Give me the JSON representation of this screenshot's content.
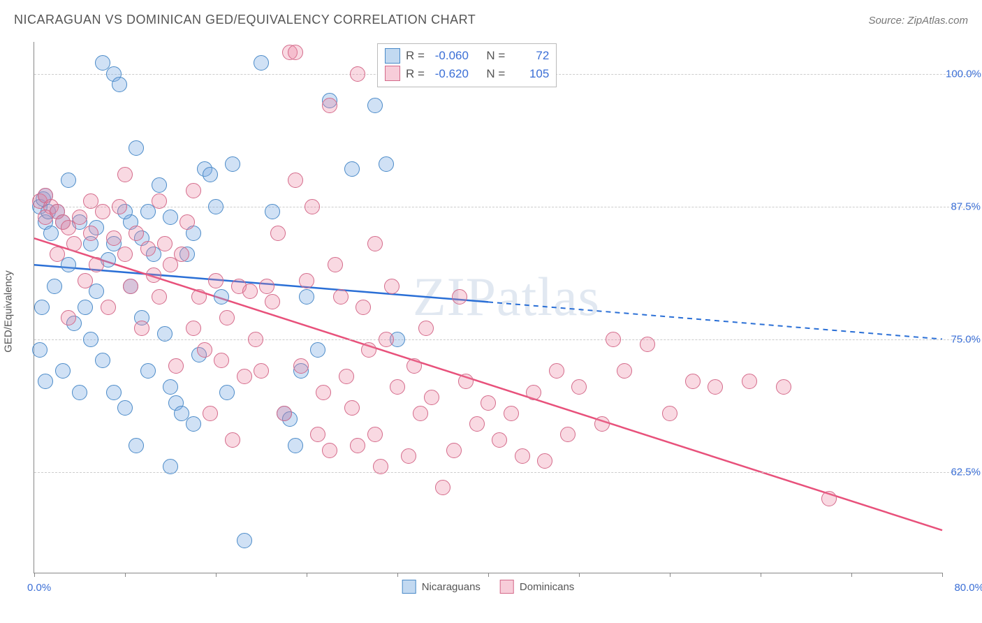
{
  "title": "NICARAGUAN VS DOMINICAN GED/EQUIVALENCY CORRELATION CHART",
  "source": "Source: ZipAtlas.com",
  "watermark": "ZIPatlas",
  "y_axis_label": "GED/Equivalency",
  "x_range": [
    0,
    80
  ],
  "y_range": [
    53,
    103
  ],
  "x_labels": {
    "min": "0.0%",
    "max": "80.0%"
  },
  "y_ticks": [
    {
      "v": 62.5,
      "label": "62.5%"
    },
    {
      "v": 75.0,
      "label": "75.0%"
    },
    {
      "v": 87.5,
      "label": "87.5%"
    },
    {
      "v": 100.0,
      "label": "100.0%"
    }
  ],
  "x_tick_positions": [
    0,
    8,
    16,
    24,
    32,
    40,
    48,
    56,
    64,
    72,
    80
  ],
  "series": [
    {
      "name": "Nicaraguans",
      "fill": "rgba(120,170,225,0.35)",
      "stroke": "#4a8ac8",
      "swatch_fill": "rgba(120,170,225,0.45)",
      "swatch_border": "#4a8ac8",
      "line_color": "#2a6fd6",
      "R": "-0.060",
      "N": "72",
      "trend": {
        "x1": 0,
        "y1": 82.0,
        "x2": 40,
        "y2": 78.5,
        "x2_ext": 80,
        "y2_ext": 75.0
      },
      "marker_radius": 10,
      "points": [
        [
          0.5,
          87.5
        ],
        [
          0.8,
          88.2
        ],
        [
          1.0,
          86.0
        ],
        [
          1.2,
          87.0
        ],
        [
          1.5,
          85.0
        ],
        [
          1.0,
          88.5
        ],
        [
          2.0,
          87.0
        ],
        [
          0.5,
          74.0
        ],
        [
          2.5,
          72.0
        ],
        [
          1.0,
          71.0
        ],
        [
          4.0,
          86.0
        ],
        [
          5.0,
          84.0
        ],
        [
          3.0,
          82.0
        ],
        [
          5.5,
          85.5
        ],
        [
          6.0,
          101.0
        ],
        [
          7.0,
          100.0
        ],
        [
          7.5,
          99.0
        ],
        [
          8.5,
          86.0
        ],
        [
          8.0,
          87.0
        ],
        [
          9.0,
          93.0
        ],
        [
          9.5,
          84.5
        ],
        [
          4.5,
          78.0
        ],
        [
          3.5,
          76.5
        ],
        [
          5.0,
          75.0
        ],
        [
          6.0,
          73.0
        ],
        [
          7.0,
          70.0
        ],
        [
          8.0,
          68.5
        ],
        [
          9.0,
          65.0
        ],
        [
          10.0,
          87.0
        ],
        [
          10.5,
          83.0
        ],
        [
          11.0,
          89.5
        ],
        [
          12.0,
          86.5
        ],
        [
          12.0,
          70.5
        ],
        [
          12.5,
          69.0
        ],
        [
          13.0,
          68.0
        ],
        [
          14.0,
          85.0
        ],
        [
          14.5,
          73.5
        ],
        [
          15.0,
          91.0
        ],
        [
          15.5,
          90.5
        ],
        [
          16.0,
          87.5
        ],
        [
          16.5,
          79.0
        ],
        [
          17.0,
          70.0
        ],
        [
          17.5,
          91.5
        ],
        [
          20.0,
          101.0
        ],
        [
          21.0,
          87.0
        ],
        [
          22.0,
          68.0
        ],
        [
          22.5,
          67.5
        ],
        [
          23.0,
          65.0
        ],
        [
          23.5,
          72.0
        ],
        [
          24.0,
          79.0
        ],
        [
          25.0,
          74.0
        ],
        [
          26.0,
          97.5
        ],
        [
          28.0,
          91.0
        ],
        [
          30.0,
          97.0
        ],
        [
          31.0,
          91.5
        ],
        [
          32.0,
          75.0
        ],
        [
          12.0,
          63.0
        ],
        [
          14.0,
          67.0
        ],
        [
          9.5,
          77.0
        ],
        [
          18.5,
          56.0
        ],
        [
          6.5,
          82.5
        ],
        [
          11.5,
          75.5
        ],
        [
          4.0,
          70.0
        ],
        [
          2.5,
          86.0
        ],
        [
          7.0,
          84.0
        ],
        [
          8.5,
          80.0
        ],
        [
          13.5,
          83.0
        ],
        [
          10.0,
          72.0
        ],
        [
          3.0,
          90.0
        ],
        [
          5.5,
          79.5
        ],
        [
          1.8,
          80.0
        ],
        [
          0.7,
          78.0
        ]
      ]
    },
    {
      "name": "Dominicans",
      "fill": "rgba(235,130,160,0.30)",
      "stroke": "#d46a8a",
      "swatch_fill": "rgba(235,130,160,0.40)",
      "swatch_border": "#d46a8a",
      "line_color": "#e8517b",
      "R": "-0.620",
      "N": "105",
      "trend": {
        "x1": 0,
        "y1": 84.5,
        "x2": 80,
        "y2": 57.0
      },
      "marker_radius": 10,
      "points": [
        [
          0.5,
          88.0
        ],
        [
          1.0,
          88.5
        ],
        [
          1.5,
          87.5
        ],
        [
          1.0,
          86.5
        ],
        [
          2.0,
          87.0
        ],
        [
          2.5,
          86.0
        ],
        [
          3.0,
          85.5
        ],
        [
          3.5,
          84.0
        ],
        [
          4.0,
          86.5
        ],
        [
          5.0,
          85.0
        ],
        [
          5.5,
          82.0
        ],
        [
          6.0,
          87.0
        ],
        [
          7.0,
          84.5
        ],
        [
          8.0,
          83.0
        ],
        [
          8.5,
          80.0
        ],
        [
          9.0,
          85.0
        ],
        [
          10.0,
          83.5
        ],
        [
          10.5,
          81.0
        ],
        [
          11.0,
          79.0
        ],
        [
          11.5,
          84.0
        ],
        [
          12.0,
          82.0
        ],
        [
          13.0,
          83.0
        ],
        [
          14.0,
          76.0
        ],
        [
          14.5,
          79.0
        ],
        [
          15.0,
          74.0
        ],
        [
          16.0,
          80.5
        ],
        [
          17.0,
          77.0
        ],
        [
          18.0,
          80.0
        ],
        [
          18.5,
          71.5
        ],
        [
          19.0,
          79.5
        ],
        [
          20.0,
          72.0
        ],
        [
          20.5,
          80.0
        ],
        [
          21.0,
          78.5
        ],
        [
          22.0,
          68.0
        ],
        [
          23.0,
          90.0
        ],
        [
          24.0,
          80.5
        ],
        [
          25.0,
          66.0
        ],
        [
          25.5,
          70.0
        ],
        [
          26.0,
          64.5
        ],
        [
          27.0,
          79.0
        ],
        [
          28.0,
          68.5
        ],
        [
          28.5,
          65.0
        ],
        [
          29.0,
          78.0
        ],
        [
          30.0,
          66.0
        ],
        [
          30.5,
          63.0
        ],
        [
          31.0,
          75.0
        ],
        [
          32.0,
          70.5
        ],
        [
          33.0,
          64.0
        ],
        [
          34.0,
          68.0
        ],
        [
          35.0,
          69.5
        ],
        [
          36.0,
          61.0
        ],
        [
          37.0,
          64.5
        ],
        [
          38.0,
          71.0
        ],
        [
          39.0,
          67.0
        ],
        [
          40.0,
          69.0
        ],
        [
          41.0,
          65.5
        ],
        [
          42.0,
          68.0
        ],
        [
          44.0,
          70.0
        ],
        [
          45.0,
          63.5
        ],
        [
          46.0,
          72.0
        ],
        [
          48.0,
          70.5
        ],
        [
          50.0,
          67.0
        ],
        [
          51.0,
          75.0
        ],
        [
          52.0,
          72.0
        ],
        [
          54.0,
          74.5
        ],
        [
          56.0,
          68.0
        ],
        [
          58.0,
          71.0
        ],
        [
          60.0,
          70.5
        ],
        [
          63.0,
          71.0
        ],
        [
          66.0,
          70.5
        ],
        [
          70.0,
          60.0
        ],
        [
          22.5,
          102.0
        ],
        [
          23.0,
          102.0
        ],
        [
          26.0,
          97.0
        ],
        [
          28.5,
          100.0
        ],
        [
          32.5,
          100.5
        ],
        [
          7.5,
          87.5
        ],
        [
          9.5,
          76.0
        ],
        [
          12.5,
          72.5
        ],
        [
          15.5,
          68.0
        ],
        [
          17.5,
          65.5
        ],
        [
          19.5,
          75.0
        ],
        [
          21.5,
          85.0
        ],
        [
          23.5,
          72.5
        ],
        [
          6.5,
          78.0
        ],
        [
          4.5,
          80.5
        ],
        [
          2.0,
          83.0
        ],
        [
          13.5,
          86.0
        ],
        [
          16.5,
          73.0
        ],
        [
          5.0,
          88.0
        ],
        [
          3.0,
          77.0
        ],
        [
          27.5,
          71.5
        ],
        [
          29.5,
          74.0
        ],
        [
          31.5,
          80.0
        ],
        [
          33.5,
          72.5
        ],
        [
          37.5,
          79.0
        ],
        [
          43.0,
          64.0
        ],
        [
          47.0,
          66.0
        ],
        [
          8.0,
          90.5
        ],
        [
          11.0,
          88.0
        ],
        [
          14.0,
          89.0
        ],
        [
          24.5,
          87.5
        ],
        [
          26.5,
          82.0
        ],
        [
          30.0,
          84.0
        ],
        [
          34.5,
          76.0
        ]
      ]
    }
  ],
  "colors": {
    "title": "#555555",
    "tick_text": "#3b6fd6",
    "grid": "#cccccc",
    "axis": "#888888",
    "background": "#ffffff"
  },
  "legend_labels": {
    "R": "R =",
    "N": "N ="
  }
}
